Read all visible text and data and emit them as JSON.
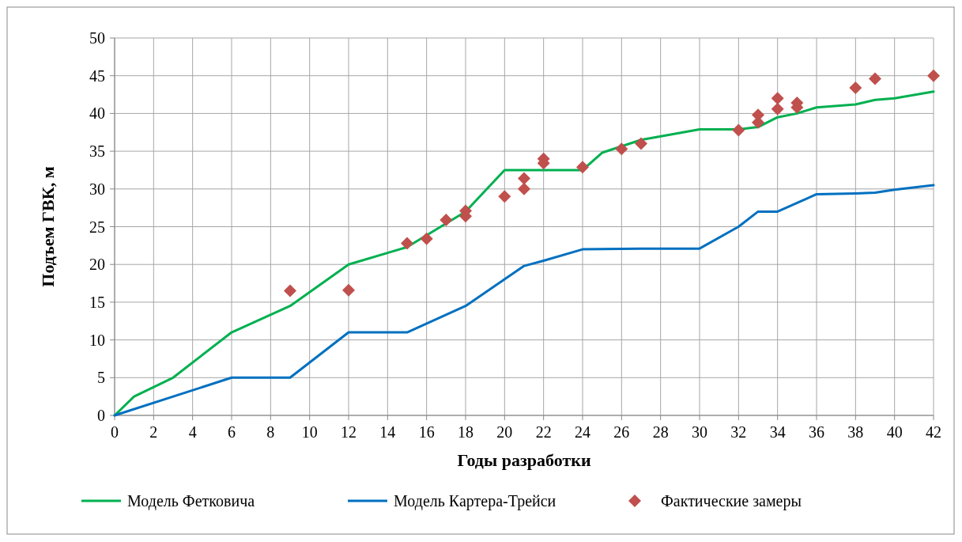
{
  "chart_data": {
    "type": "line",
    "xlabel": "Годы разработки",
    "ylabel": "Подъем ГВК, м",
    "xlim": [
      0,
      42
    ],
    "xticks": [
      0,
      2,
      4,
      6,
      8,
      10,
      12,
      14,
      16,
      18,
      20,
      22,
      24,
      26,
      28,
      30,
      32,
      34,
      36,
      38,
      40,
      42
    ],
    "ylim": [
      0,
      50
    ],
    "yticks": [
      0,
      5,
      10,
      15,
      20,
      25,
      30,
      35,
      40,
      45,
      50
    ],
    "grid": true,
    "legend": "bottom",
    "series": [
      {
        "name": "Модель Фетковича",
        "color": "#00b050",
        "marker": "none",
        "x": [
          0,
          1,
          3,
          6,
          9,
          12,
          15,
          18,
          20,
          22,
          24,
          25,
          27,
          30,
          32,
          33,
          34,
          35,
          36,
          38,
          39,
          40,
          42
        ],
        "values": [
          0,
          2.5,
          5,
          11,
          14.5,
          20,
          22.3,
          27,
          32.5,
          32.5,
          32.5,
          34.8,
          36.5,
          37.9,
          37.9,
          38.2,
          39.5,
          40,
          40.8,
          41.2,
          41.8,
          42,
          42.9
        ]
      },
      {
        "name": "Модель Картера-Трейси",
        "color": "#0070c0",
        "marker": "none",
        "x": [
          0,
          6,
          9,
          12,
          15,
          18,
          21,
          22,
          24,
          27,
          30,
          32,
          33,
          34,
          36,
          38,
          39,
          40,
          42
        ],
        "values": [
          0,
          5,
          5,
          11,
          11,
          14.5,
          19.8,
          20.5,
          22,
          22.1,
          22.1,
          25,
          27,
          27,
          29.3,
          29.4,
          29.5,
          29.9,
          30.5
        ]
      },
      {
        "name": "Фактические замеры",
        "color": "#c0504d",
        "type": "scatter",
        "marker": "diamond",
        "x": [
          9,
          12,
          15,
          16,
          17,
          18,
          18,
          20,
          21,
          21,
          22,
          22,
          24,
          26,
          27,
          32,
          33,
          33,
          34,
          34,
          35,
          35,
          38,
          39,
          42
        ],
        "values": [
          16.5,
          16.6,
          22.8,
          23.4,
          25.9,
          26.4,
          27.1,
          29,
          30,
          31.4,
          33.4,
          34,
          32.9,
          35.3,
          36,
          37.8,
          38.8,
          39.8,
          40.6,
          42,
          40.8,
          41.4,
          43.4,
          44.6,
          45
        ]
      }
    ]
  }
}
